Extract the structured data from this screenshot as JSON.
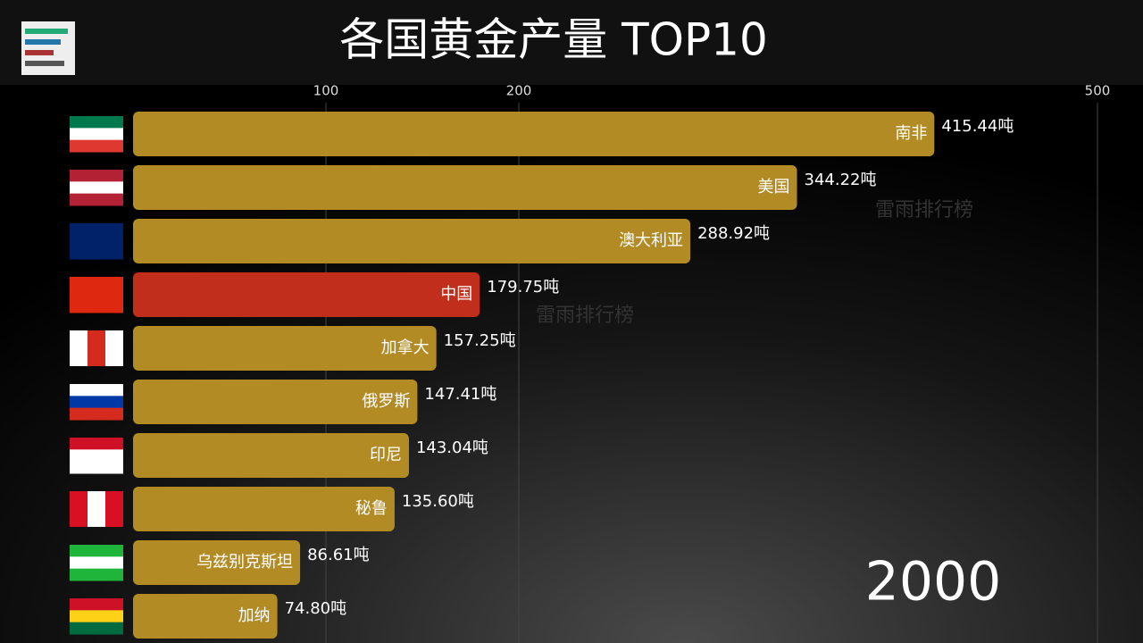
{
  "chart_data": {
    "type": "bar",
    "orientation": "horizontal",
    "title": "各国黄金产量 TOP10",
    "year": "2000",
    "watermark": "雷雨排行榜",
    "categories": [
      "南非",
      "美国",
      "澳大利亚",
      "中国",
      "加拿大",
      "俄罗斯",
      "印尼",
      "秘鲁",
      "乌兹别克斯坦",
      "加纳"
    ],
    "values": [
      415.44,
      344.22,
      288.92,
      179.75,
      157.25,
      147.41,
      143.04,
      135.6,
      86.61,
      74.8
    ],
    "value_labels": [
      "415.44吨",
      "344.22吨",
      "288.92吨",
      "179.75吨",
      "157.25吨",
      "147.41吨",
      "143.04吨",
      "135.60吨",
      "86.61吨",
      "74.80吨"
    ],
    "colors": [
      "#b38b24",
      "#b38b24",
      "#b38b24",
      "#c22e1c",
      "#b38b24",
      "#b38b24",
      "#b38b24",
      "#b38b24",
      "#b38b24",
      "#b38b24"
    ],
    "xlim": [
      0,
      500
    ],
    "xticks": [
      100,
      200,
      500
    ],
    "grid": true
  }
}
